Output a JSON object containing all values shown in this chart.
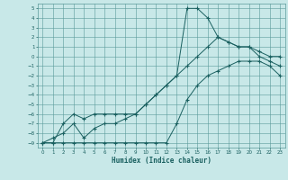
{
  "xlabel": "Humidex (Indice chaleur)",
  "bg_color": "#c8e8e8",
  "grid_color": "#5a9a9a",
  "line_color": "#1a6060",
  "xlim": [
    -0.5,
    23.5
  ],
  "ylim": [
    -9.5,
    5.5
  ],
  "xticks": [
    0,
    1,
    2,
    3,
    4,
    5,
    6,
    7,
    8,
    9,
    10,
    11,
    12,
    13,
    14,
    15,
    16,
    17,
    18,
    19,
    20,
    21,
    22,
    23
  ],
  "yticks": [
    5,
    4,
    3,
    2,
    1,
    0,
    -1,
    -2,
    -3,
    -4,
    -5,
    -6,
    -7,
    -8,
    -9
  ],
  "line1_x": [
    0,
    1,
    2,
    3,
    4,
    5,
    6,
    7,
    8,
    9,
    10,
    11,
    12,
    13,
    14,
    15,
    16,
    17,
    18,
    19,
    20,
    21,
    22,
    23
  ],
  "line1_y": [
    -9,
    -9,
    -9,
    -9,
    -9,
    -9,
    -9,
    -9,
    -9,
    -9,
    -9,
    -9,
    -9,
    -7,
    -4.5,
    -3,
    -2,
    -1.5,
    -1,
    -0.5,
    -0.5,
    -0.5,
    -1,
    -2
  ],
  "line2_x": [
    0,
    1,
    2,
    3,
    4,
    5,
    6,
    7,
    8,
    9,
    10,
    11,
    12,
    13,
    14,
    15,
    16,
    17,
    18,
    19,
    20,
    21,
    22,
    23
  ],
  "line2_y": [
    -9,
    -9,
    -7,
    -6,
    -6.5,
    -6,
    -6,
    -6,
    -6,
    -6,
    -5,
    -4,
    -3,
    -2,
    5,
    5,
    4,
    2,
    1.5,
    1,
    1,
    0.5,
    0,
    0
  ],
  "line3_x": [
    0,
    1,
    2,
    3,
    4,
    5,
    6,
    7,
    8,
    9,
    10,
    11,
    12,
    13,
    14,
    15,
    16,
    17,
    18,
    19,
    20,
    21,
    22,
    23
  ],
  "line3_y": [
    -9,
    -8.5,
    -8,
    -7,
    -8.5,
    -7.5,
    -7,
    -7,
    -6.5,
    -6,
    -5,
    -4,
    -3,
    -2,
    -1,
    0,
    1,
    2,
    1.5,
    1,
    1,
    0,
    -0.5,
    -1
  ]
}
